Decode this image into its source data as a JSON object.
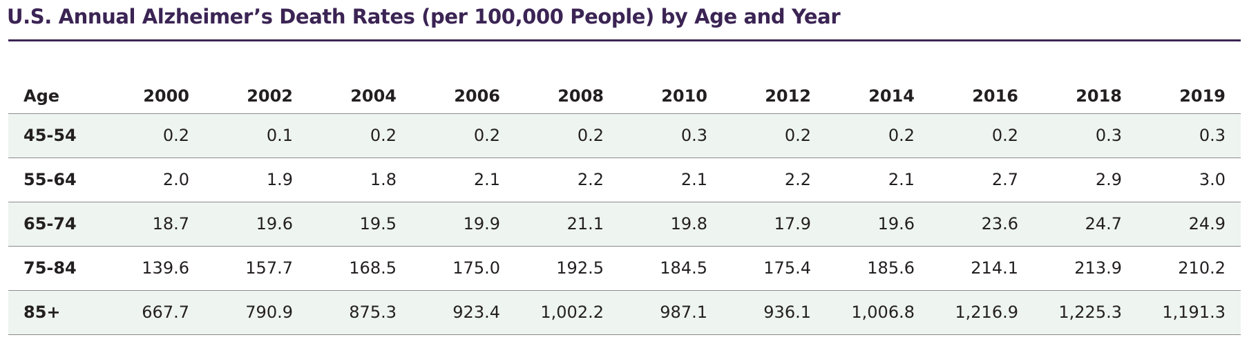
{
  "chart_data": {
    "type": "table",
    "title": "U.S. Annual Alzheimer’s Death Rates (per 100,000 People) by Age and Year",
    "row_header_label": "Age",
    "columns": [
      "2000",
      "2002",
      "2004",
      "2006",
      "2008",
      "2010",
      "2012",
      "2014",
      "2016",
      "2018",
      "2019"
    ],
    "rows": [
      {
        "age": "45-54",
        "values": [
          "0.2",
          "0.1",
          "0.2",
          "0.2",
          "0.2",
          "0.3",
          "0.2",
          "0.2",
          "0.2",
          "0.3",
          "0.3"
        ]
      },
      {
        "age": "55-64",
        "values": [
          "2.0",
          "1.9",
          "1.8",
          "2.1",
          "2.2",
          "2.1",
          "2.2",
          "2.1",
          "2.7",
          "2.9",
          "3.0"
        ]
      },
      {
        "age": "65-74",
        "values": [
          "18.7",
          "19.6",
          "19.5",
          "19.9",
          "21.1",
          "19.8",
          "17.9",
          "19.6",
          "23.6",
          "24.7",
          "24.9"
        ]
      },
      {
        "age": "75-84",
        "values": [
          "139.6",
          "157.7",
          "168.5",
          "175.0",
          "192.5",
          "184.5",
          "175.4",
          "185.6",
          "214.1",
          "213.9",
          "210.2"
        ]
      },
      {
        "age": "85+",
        "values": [
          "667.7",
          "790.9",
          "875.3",
          "923.4",
          "1,002.2",
          "987.1",
          "936.1",
          "1,006.8",
          "1,216.9",
          "1,225.3",
          "1,191.3"
        ]
      }
    ],
    "colors": {
      "title": "#3b2454",
      "title_rule": "#3b2454",
      "shaded_row": "#eef4ef",
      "row_rule": "#8a8a8a"
    }
  }
}
